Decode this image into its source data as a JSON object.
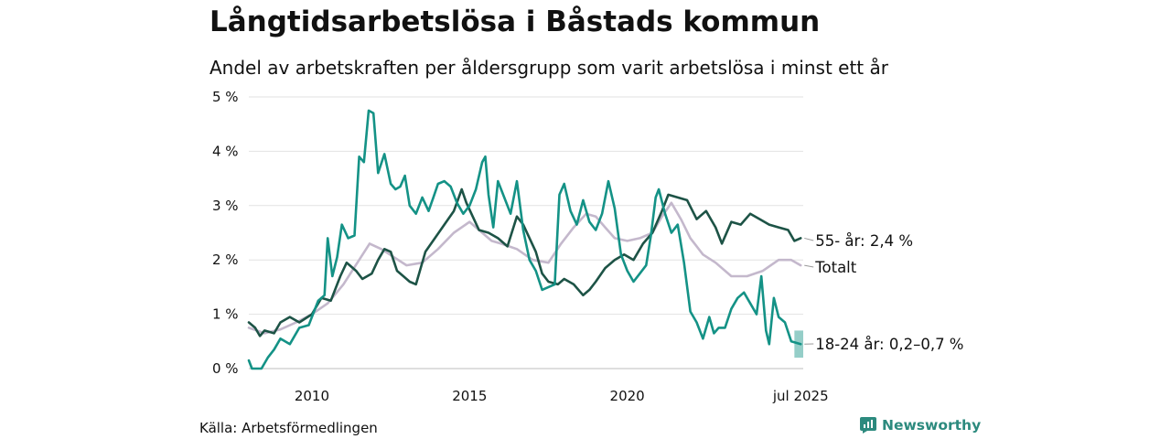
{
  "title": "Långtidsarbetslösa i Båstads kommun",
  "subtitle": "Andel av arbetskraften per åldersgrupp som varit arbetslösa i minst ett år",
  "source": "Källa: Arbetsförmedlingen",
  "brand": {
    "name": "Newsworthy",
    "icon": "newsworthy-logo-icon",
    "color": "#2c8a7e"
  },
  "chart_data": {
    "type": "line",
    "title": "Långtidsarbetslösa i Båstads kommun",
    "ylabel": "",
    "xlabel": "",
    "ylim": [
      0,
      5
    ],
    "xlim": [
      2008.0,
      2025.58
    ],
    "yticks": [
      {
        "value": 0,
        "label": "0 %"
      },
      {
        "value": 1,
        "label": "1 %"
      },
      {
        "value": 2,
        "label": "2 %"
      },
      {
        "value": 3,
        "label": "3 %"
      },
      {
        "value": 4,
        "label": "4 %"
      },
      {
        "value": 5,
        "label": "5 %"
      }
    ],
    "xticks": [
      {
        "value": 2010,
        "label": "2010"
      },
      {
        "value": 2015,
        "label": "2015"
      },
      {
        "value": 2020,
        "label": "2020"
      },
      {
        "value": 2025.5,
        "label": "jul 2025"
      }
    ],
    "grid": true,
    "series": [
      {
        "name": "Totalt",
        "label": "Totalt",
        "color": "#c4b8cc",
        "points": [
          [
            2008.0,
            0.75
          ],
          [
            2008.5,
            0.65
          ],
          [
            2009.0,
            0.72
          ],
          [
            2009.5,
            0.85
          ],
          [
            2010.0,
            1.0
          ],
          [
            2010.5,
            1.2
          ],
          [
            2011.0,
            1.55
          ],
          [
            2011.5,
            2.0
          ],
          [
            2011.83,
            2.3
          ],
          [
            2012.2,
            2.2
          ],
          [
            2012.6,
            2.05
          ],
          [
            2013.0,
            1.9
          ],
          [
            2013.5,
            1.95
          ],
          [
            2014.0,
            2.2
          ],
          [
            2014.5,
            2.5
          ],
          [
            2015.0,
            2.7
          ],
          [
            2015.3,
            2.55
          ],
          [
            2015.7,
            2.35
          ],
          [
            2016.0,
            2.3
          ],
          [
            2016.5,
            2.2
          ],
          [
            2017.0,
            2.0
          ],
          [
            2017.5,
            1.95
          ],
          [
            2017.9,
            2.3
          ],
          [
            2018.3,
            2.6
          ],
          [
            2018.7,
            2.85
          ],
          [
            2019.0,
            2.8
          ],
          [
            2019.3,
            2.6
          ],
          [
            2019.6,
            2.4
          ],
          [
            2020.0,
            2.35
          ],
          [
            2020.4,
            2.4
          ],
          [
            2020.8,
            2.5
          ],
          [
            2021.1,
            2.8
          ],
          [
            2021.4,
            3.05
          ],
          [
            2021.7,
            2.75
          ],
          [
            2022.0,
            2.4
          ],
          [
            2022.4,
            2.1
          ],
          [
            2022.8,
            1.95
          ],
          [
            2023.3,
            1.7
          ],
          [
            2023.8,
            1.7
          ],
          [
            2024.3,
            1.8
          ],
          [
            2024.8,
            2.0
          ],
          [
            2025.2,
            2.0
          ],
          [
            2025.5,
            1.9
          ]
        ]
      },
      {
        "name": "55- år",
        "label": "55- år: 2,4 %",
        "color": "#1d5346",
        "points": [
          [
            2008.0,
            0.85
          ],
          [
            2008.2,
            0.75
          ],
          [
            2008.35,
            0.6
          ],
          [
            2008.5,
            0.7
          ],
          [
            2008.8,
            0.65
          ],
          [
            2009.0,
            0.85
          ],
          [
            2009.3,
            0.95
          ],
          [
            2009.6,
            0.85
          ],
          [
            2010.0,
            1.0
          ],
          [
            2010.3,
            1.3
          ],
          [
            2010.6,
            1.25
          ],
          [
            2010.9,
            1.7
          ],
          [
            2011.1,
            1.95
          ],
          [
            2011.4,
            1.8
          ],
          [
            2011.6,
            1.65
          ],
          [
            2011.9,
            1.75
          ],
          [
            2012.1,
            2.0
          ],
          [
            2012.3,
            2.2
          ],
          [
            2012.5,
            2.15
          ],
          [
            2012.7,
            1.8
          ],
          [
            2012.9,
            1.7
          ],
          [
            2013.1,
            1.6
          ],
          [
            2013.3,
            1.55
          ],
          [
            2013.6,
            2.15
          ],
          [
            2013.9,
            2.4
          ],
          [
            2014.2,
            2.65
          ],
          [
            2014.5,
            2.9
          ],
          [
            2014.75,
            3.3
          ],
          [
            2014.9,
            3.05
          ],
          [
            2015.1,
            2.8
          ],
          [
            2015.3,
            2.55
          ],
          [
            2015.6,
            2.5
          ],
          [
            2015.9,
            2.4
          ],
          [
            2016.2,
            2.25
          ],
          [
            2016.5,
            2.8
          ],
          [
            2016.7,
            2.65
          ],
          [
            2016.9,
            2.4
          ],
          [
            2017.1,
            2.15
          ],
          [
            2017.3,
            1.75
          ],
          [
            2017.5,
            1.6
          ],
          [
            2017.8,
            1.55
          ],
          [
            2018.0,
            1.65
          ],
          [
            2018.3,
            1.55
          ],
          [
            2018.6,
            1.35
          ],
          [
            2018.8,
            1.45
          ],
          [
            2019.0,
            1.6
          ],
          [
            2019.3,
            1.85
          ],
          [
            2019.6,
            2.0
          ],
          [
            2019.9,
            2.1
          ],
          [
            2020.2,
            2.0
          ],
          [
            2020.5,
            2.3
          ],
          [
            2020.8,
            2.5
          ],
          [
            2021.1,
            2.9
          ],
          [
            2021.3,
            3.2
          ],
          [
            2021.6,
            3.15
          ],
          [
            2021.9,
            3.1
          ],
          [
            2022.2,
            2.75
          ],
          [
            2022.5,
            2.9
          ],
          [
            2022.8,
            2.6
          ],
          [
            2023.0,
            2.3
          ],
          [
            2023.3,
            2.7
          ],
          [
            2023.6,
            2.65
          ],
          [
            2023.9,
            2.85
          ],
          [
            2024.2,
            2.75
          ],
          [
            2024.5,
            2.65
          ],
          [
            2024.8,
            2.6
          ],
          [
            2025.1,
            2.55
          ],
          [
            2025.3,
            2.35
          ],
          [
            2025.5,
            2.4
          ]
        ]
      },
      {
        "name": "18-24 år",
        "label": "18-24 år: 0,2–0,7 %",
        "color": "#149286",
        "band": {
          "x0": 2025.3,
          "x1": 2025.58,
          "low": 0.2,
          "high": 0.7
        },
        "points": [
          [
            2008.0,
            0.15
          ],
          [
            2008.1,
            0.0
          ],
          [
            2008.4,
            0.0
          ],
          [
            2008.6,
            0.2
          ],
          [
            2008.8,
            0.35
          ],
          [
            2009.0,
            0.55
          ],
          [
            2009.3,
            0.45
          ],
          [
            2009.6,
            0.75
          ],
          [
            2009.9,
            0.8
          ],
          [
            2010.2,
            1.25
          ],
          [
            2010.4,
            1.35
          ],
          [
            2010.5,
            2.4
          ],
          [
            2010.65,
            1.7
          ],
          [
            2010.8,
            2.05
          ],
          [
            2010.95,
            2.65
          ],
          [
            2011.15,
            2.4
          ],
          [
            2011.35,
            2.45
          ],
          [
            2011.5,
            3.9
          ],
          [
            2011.65,
            3.8
          ],
          [
            2011.8,
            4.75
          ],
          [
            2011.95,
            4.7
          ],
          [
            2012.1,
            3.6
          ],
          [
            2012.3,
            3.95
          ],
          [
            2012.5,
            3.4
          ],
          [
            2012.65,
            3.3
          ],
          [
            2012.8,
            3.35
          ],
          [
            2012.95,
            3.55
          ],
          [
            2013.1,
            3.0
          ],
          [
            2013.3,
            2.85
          ],
          [
            2013.5,
            3.15
          ],
          [
            2013.7,
            2.9
          ],
          [
            2013.85,
            3.15
          ],
          [
            2014.0,
            3.4
          ],
          [
            2014.2,
            3.45
          ],
          [
            2014.4,
            3.35
          ],
          [
            2014.6,
            3.05
          ],
          [
            2014.8,
            2.85
          ],
          [
            2015.0,
            3.0
          ],
          [
            2015.2,
            3.3
          ],
          [
            2015.4,
            3.8
          ],
          [
            2015.5,
            3.9
          ],
          [
            2015.6,
            3.2
          ],
          [
            2015.75,
            2.6
          ],
          [
            2015.9,
            3.45
          ],
          [
            2016.1,
            3.15
          ],
          [
            2016.3,
            2.85
          ],
          [
            2016.5,
            3.45
          ],
          [
            2016.7,
            2.55
          ],
          [
            2016.9,
            2.0
          ],
          [
            2017.1,
            1.8
          ],
          [
            2017.3,
            1.45
          ],
          [
            2017.5,
            1.5
          ],
          [
            2017.7,
            1.55
          ],
          [
            2017.85,
            3.2
          ],
          [
            2018.0,
            3.4
          ],
          [
            2018.2,
            2.9
          ],
          [
            2018.4,
            2.65
          ],
          [
            2018.6,
            3.1
          ],
          [
            2018.8,
            2.7
          ],
          [
            2019.0,
            2.55
          ],
          [
            2019.2,
            2.85
          ],
          [
            2019.4,
            3.45
          ],
          [
            2019.6,
            2.95
          ],
          [
            2019.8,
            2.1
          ],
          [
            2020.0,
            1.8
          ],
          [
            2020.2,
            1.6
          ],
          [
            2020.4,
            1.75
          ],
          [
            2020.6,
            1.9
          ],
          [
            2020.75,
            2.45
          ],
          [
            2020.9,
            3.15
          ],
          [
            2021.0,
            3.3
          ],
          [
            2021.2,
            2.85
          ],
          [
            2021.4,
            2.5
          ],
          [
            2021.6,
            2.65
          ],
          [
            2021.8,
            1.95
          ],
          [
            2022.0,
            1.05
          ],
          [
            2022.2,
            0.85
          ],
          [
            2022.4,
            0.55
          ],
          [
            2022.6,
            0.95
          ],
          [
            2022.75,
            0.65
          ],
          [
            2022.9,
            0.75
          ],
          [
            2023.1,
            0.75
          ],
          [
            2023.3,
            1.1
          ],
          [
            2023.5,
            1.3
          ],
          [
            2023.7,
            1.4
          ],
          [
            2023.9,
            1.2
          ],
          [
            2024.1,
            1.0
          ],
          [
            2024.25,
            1.7
          ],
          [
            2024.4,
            0.7
          ],
          [
            2024.5,
            0.45
          ],
          [
            2024.65,
            1.3
          ],
          [
            2024.8,
            0.95
          ],
          [
            2025.0,
            0.85
          ],
          [
            2025.2,
            0.5
          ],
          [
            2025.5,
            0.45
          ]
        ]
      }
    ]
  }
}
